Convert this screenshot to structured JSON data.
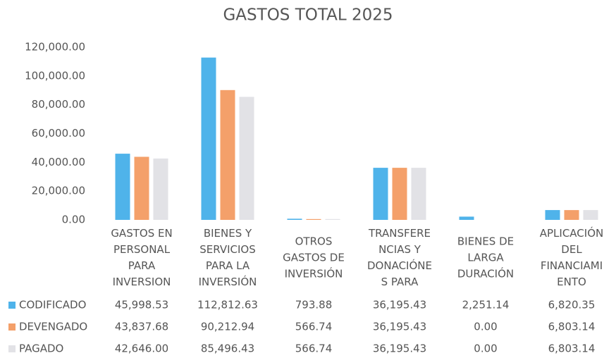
{
  "chart_data": {
    "type": "bar",
    "title": "GASTOS TOTAL 2025",
    "categories": [
      [
        "GASTOS EN",
        "PERSONAL",
        "PARA",
        "INVERSION"
      ],
      [
        "BIENES Y",
        "SERVICIOS",
        "PARA LA",
        "INVERSIÓN"
      ],
      [
        "OTROS",
        "GASTOS DE",
        "INVERSIÓN"
      ],
      [
        "TRANSFERE",
        "NCIAS Y",
        "DONACIÓNE",
        "S PARA"
      ],
      [
        "BIENES DE",
        "LARGA",
        "DURACIÓN"
      ],
      [
        "APLICACIÓN",
        "DEL",
        "FINANCIAMI",
        "ENTO"
      ]
    ],
    "series": [
      {
        "name": "CODIFICADO",
        "color": "#4fb3ea",
        "values": [
          45998.53,
          112812.63,
          793.88,
          36195.43,
          2251.14,
          6820.35
        ],
        "value_labels": [
          "45,998.53",
          "112,812.63",
          "793.88",
          "36,195.43",
          "2,251.14",
          "6,820.35"
        ]
      },
      {
        "name": "DEVENGADO",
        "color": "#f4a06a",
        "values": [
          43837.68,
          90212.94,
          566.74,
          36195.43,
          0,
          6803.14
        ],
        "value_labels": [
          "43,837.68",
          "90,212.94",
          "566.74",
          "36,195.43",
          "0.00",
          "6,803.14"
        ]
      },
      {
        "name": "PAGADO",
        "color": "#e2e2e6",
        "values": [
          42646.0,
          85496.43,
          566.74,
          36195.43,
          0,
          6803.14
        ],
        "value_labels": [
          "42,646.00",
          "85,496.43",
          "566.74",
          "36,195.43",
          "0.00",
          "6,803.14"
        ]
      }
    ],
    "ylim": [
      0,
      120000
    ],
    "yticks": [
      {
        "value": 0,
        "label": "0.00"
      },
      {
        "value": 20000,
        "label": "20,000.00"
      },
      {
        "value": 40000,
        "label": "40,000.00"
      },
      {
        "value": 60000,
        "label": "60,000.00"
      },
      {
        "value": 80000,
        "label": "80,000.00"
      },
      {
        "value": 100000,
        "label": "100,000.00"
      },
      {
        "value": 120000,
        "label": "120,000.00"
      }
    ],
    "grid": false
  }
}
